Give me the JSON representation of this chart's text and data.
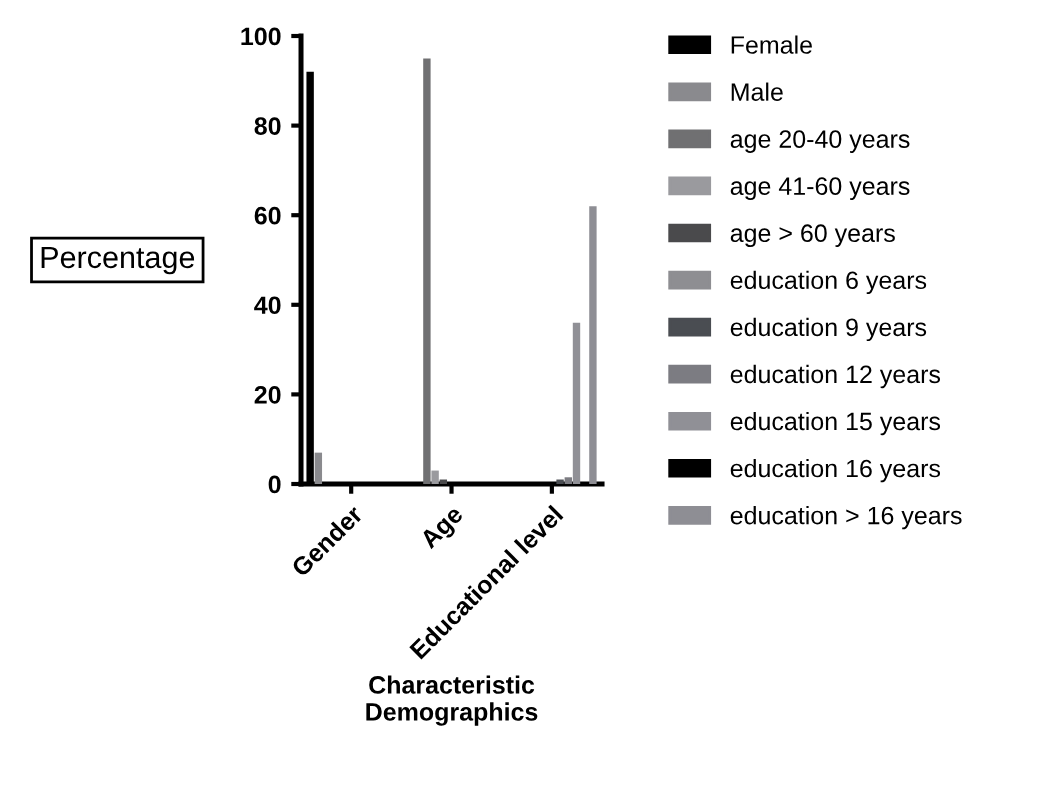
{
  "chart_data": {
    "type": "bar",
    "xlabel": "Characteristic\nDemographics",
    "ylabel": "Percentage",
    "categories": [
      "Gender",
      "Age",
      "Educational level"
    ],
    "series": [
      {
        "name": "Female",
        "color": "#000000",
        "values": [
          92,
          null,
          null
        ]
      },
      {
        "name": "Male",
        "color": "#8a8a8e",
        "values": [
          7,
          null,
          null
        ]
      },
      {
        "name": "age 20-40 years",
        "color": "#707072",
        "values": [
          null,
          95,
          null
        ]
      },
      {
        "name": "age 41-60 years",
        "color": "#9a9a9e",
        "values": [
          null,
          3,
          null
        ]
      },
      {
        "name": "age > 60 years",
        "color": "#4a4a4c",
        "values": [
          null,
          1,
          null
        ]
      },
      {
        "name": "education 6 years",
        "color": "#8e8e92",
        "values": [
          null,
          null,
          0
        ]
      },
      {
        "name": "education 9 years",
        "color": "#4a4d52",
        "values": [
          null,
          null,
          1
        ]
      },
      {
        "name": "education 12 years",
        "color": "#7c7c82",
        "values": [
          null,
          null,
          1.5
        ]
      },
      {
        "name": "education 15 years",
        "color": "#909096",
        "values": [
          null,
          null,
          36
        ]
      },
      {
        "name": "education 16 years",
        "color": "#000000",
        "values": [
          null,
          null,
          0
        ]
      },
      {
        "name": "education > 16 years",
        "color": "#8e8e94",
        "values": [
          null,
          null,
          62
        ]
      }
    ],
    "ylim": [
      0,
      100
    ],
    "yticks": [
      0,
      20,
      40,
      60,
      80,
      100
    ],
    "grid": false,
    "legend": "right"
  }
}
